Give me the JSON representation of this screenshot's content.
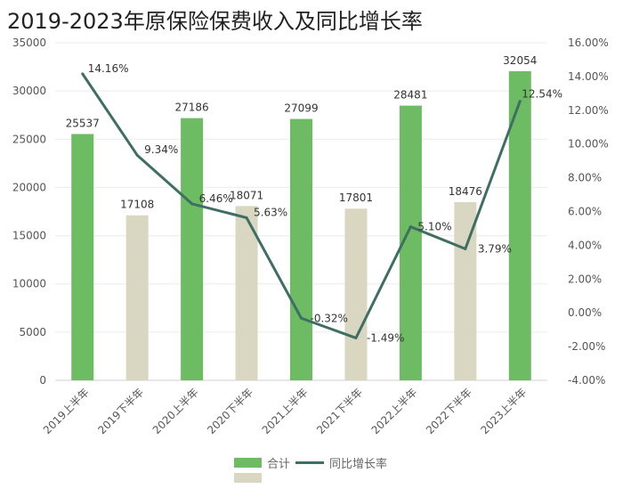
{
  "chart_data": {
    "type": "bar+line",
    "title": "2019-2023年原保险保费收入及同比增长率",
    "categories": [
      "2019上半年",
      "2019下半年",
      "2020上半年",
      "2020下半年",
      "2021上半年",
      "2021下半年",
      "2022上半年",
      "2022下半年",
      "2023上半年"
    ],
    "series": [
      {
        "name": "合计",
        "type": "bar",
        "axis": "left",
        "values": [
          25537,
          17108,
          27186,
          18071,
          27099,
          17801,
          28481,
          18476,
          32054
        ],
        "colors": [
          "#6dbb63",
          "#d9d7c1"
        ]
      },
      {
        "name": "同比增长率",
        "type": "line",
        "axis": "right",
        "values": [
          14.16,
          9.34,
          6.46,
          5.63,
          -0.32,
          -1.49,
          5.1,
          3.79,
          12.54
        ],
        "labels": [
          "14.16%",
          "9.34%",
          "6.46%",
          "5.63%",
          "-0.32%",
          "-1.49%",
          "5.10%",
          "3.79%",
          "12.54%"
        ],
        "color": "#3f6e63"
      }
    ],
    "ylim_left": [
      0,
      35000
    ],
    "yticks_left": [
      "0",
      "5000",
      "10000",
      "15000",
      "20000",
      "25000",
      "30000",
      "35000"
    ],
    "ylim_right": [
      -4,
      16
    ],
    "yticks_right": [
      "-4.00%",
      "-2.00%",
      "0.00%",
      "2.00%",
      "4.00%",
      "6.00%",
      "8.00%",
      "10.00%",
      "12.00%",
      "14.00%",
      "16.00%"
    ],
    "grid": true,
    "legend_position": "bottom"
  },
  "legend": {
    "bar": "合计",
    "line": "同比增长率"
  }
}
